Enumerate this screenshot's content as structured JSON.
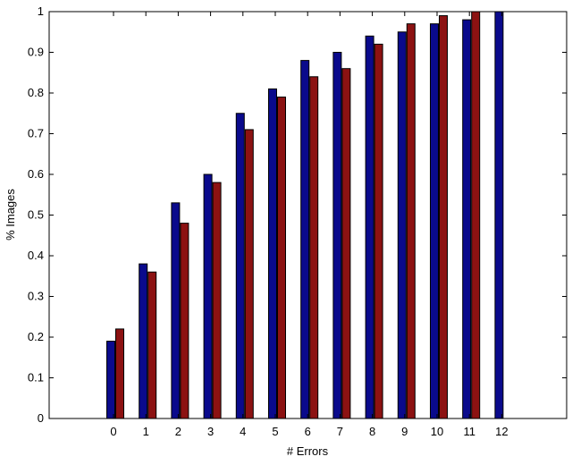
{
  "chart_data": {
    "type": "bar",
    "title": "",
    "xlabel": "# Errors",
    "ylabel": "% Images",
    "categories": [
      "0",
      "1",
      "2",
      "3",
      "4",
      "5",
      "6",
      "7",
      "8",
      "9",
      "10",
      "11",
      "12"
    ],
    "series": [
      {
        "values": [
          0.19,
          0.38,
          0.53,
          0.6,
          0.75,
          0.81,
          0.88,
          0.9,
          0.94,
          0.95,
          0.97,
          0.98,
          1.0
        ]
      },
      {
        "values": [
          0.22,
          0.36,
          0.48,
          0.58,
          0.71,
          0.79,
          0.84,
          0.86,
          0.92,
          0.97,
          0.99,
          1.0,
          null
        ]
      }
    ],
    "ylim": [
      0,
      1
    ],
    "yticks": [
      "0",
      "0.1",
      "0.2",
      "0.3",
      "0.4",
      "0.5",
      "0.6",
      "0.7",
      "0.8",
      "0.9",
      "1"
    ],
    "grid": false,
    "colors": [
      "#0a0a8c",
      "#8c1212"
    ],
    "edge_color": "#000000"
  }
}
